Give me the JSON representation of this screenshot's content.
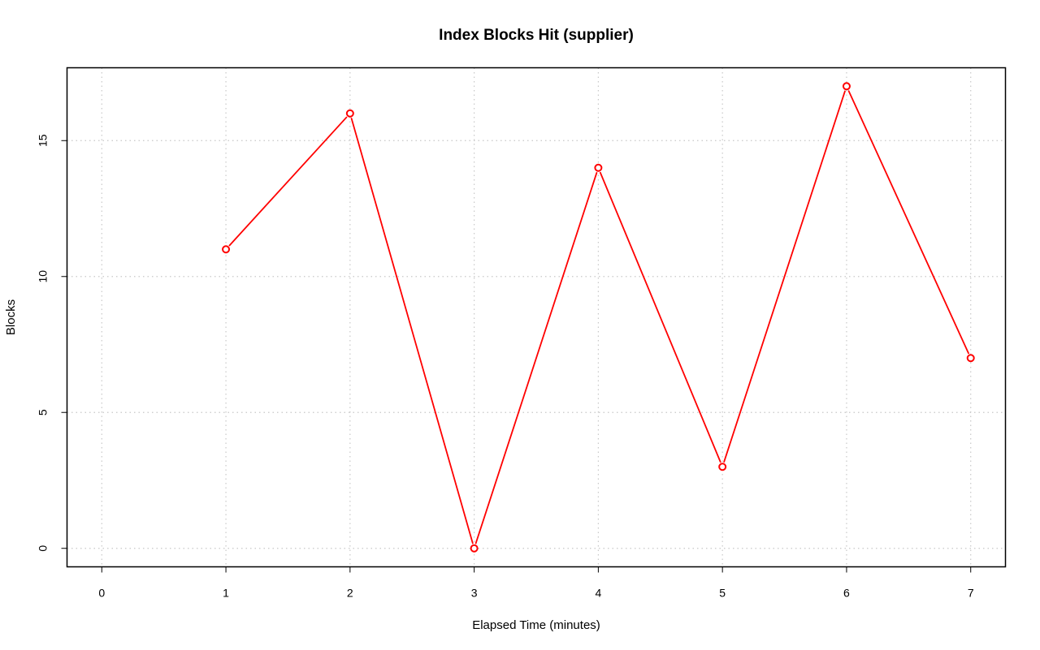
{
  "chart_data": {
    "type": "line",
    "title": "Index Blocks Hit (supplier)",
    "xlabel": "Elapsed Time (minutes)",
    "ylabel": "Blocks",
    "x_ticks": [
      0,
      1,
      2,
      3,
      4,
      5,
      6,
      7
    ],
    "y_ticks": [
      0,
      5,
      10,
      15
    ],
    "xlim": [
      -0.28,
      7.28
    ],
    "ylim": [
      -0.68,
      17.68
    ],
    "grid": true,
    "legend": "none",
    "series": [
      {
        "color": "#ff0000",
        "marker": "open-circle",
        "x": [
          1,
          2,
          3,
          4,
          5,
          6,
          7
        ],
        "y": [
          11,
          16,
          0,
          14,
          3,
          17,
          7
        ]
      }
    ]
  }
}
